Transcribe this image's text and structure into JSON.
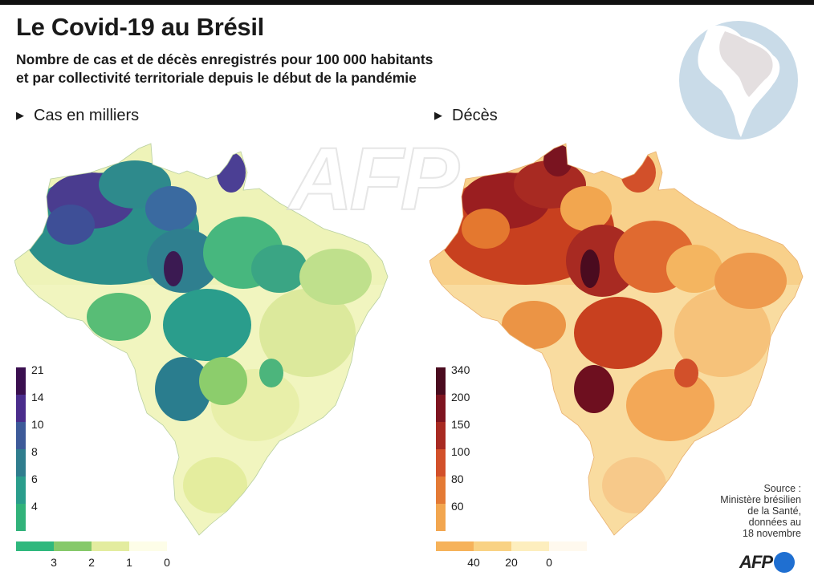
{
  "header": {
    "title": "Le Covid-19 au Brésil",
    "subtitle_line1": "Nombre de cas et de décès enregistrés pour 100 000 habitants",
    "subtitle_line2": "et par collectivité territoriale depuis le début de la pandémie"
  },
  "maps": [
    {
      "id": "cases",
      "title": "Cas en milliers",
      "legend_vertical": [
        {
          "label": "21",
          "color": "#3a0f4f"
        },
        {
          "label": "14",
          "color": "#4a2d8c"
        },
        {
          "label": "10",
          "color": "#3d5a99"
        },
        {
          "label": "8",
          "color": "#2f7d8e"
        },
        {
          "label": "6",
          "color": "#2a9d8c"
        },
        {
          "label": "4",
          "color": "#31b27a"
        }
      ],
      "legend_horizontal": [
        {
          "label": "3",
          "color": "#2fb87d"
        },
        {
          "label": "2",
          "color": "#86c96a"
        },
        {
          "label": "1",
          "color": "#e3ec9f"
        },
        {
          "label": "0",
          "color": "#fdfde8"
        }
      ]
    },
    {
      "id": "deaths",
      "title": "Décès",
      "legend_vertical": [
        {
          "label": "340",
          "color": "#4a0b1f"
        },
        {
          "label": "200",
          "color": "#7e1420"
        },
        {
          "label": "150",
          "color": "#a82a22"
        },
        {
          "label": "100",
          "color": "#d2502a"
        },
        {
          "label": "80",
          "color": "#e47a35"
        },
        {
          "label": "60",
          "color": "#f2a64f"
        }
      ],
      "legend_horizontal": [
        {
          "label": "40",
          "color": "#f6b25a"
        },
        {
          "label": "20",
          "color": "#f9d284"
        },
        {
          "label": "0",
          "color": "#fdeebe"
        },
        {
          "label": "",
          "color": "#fff9ee"
        }
      ]
    }
  ],
  "source": {
    "line1": "Source :",
    "line2": "Ministère brésilien",
    "line3": "de la Santé,",
    "line4": "données au",
    "line5": "18 novembre"
  },
  "watermark": "AFP",
  "logo": "AFP"
}
